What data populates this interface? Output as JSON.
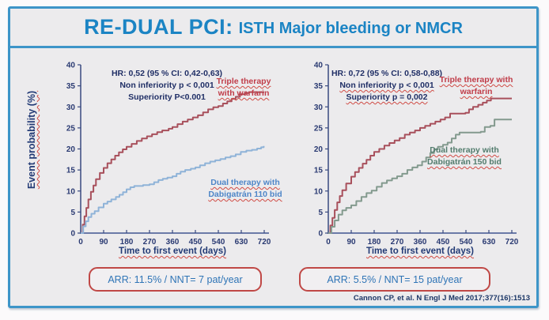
{
  "title": {
    "main": "RE-DUAL PCI:",
    "sub": "ISTH Major bleeding or NMCR"
  },
  "citation": "Cannon CP, et al. N Engl J Med 2017;377(16):1513",
  "arr_boxes": [
    {
      "text": "ARR: 11.5% / NNT= 7 pat/year"
    },
    {
      "text": "ARR: 5.5% / NNT= 15 pat/year"
    }
  ],
  "colors": {
    "frame_blue": "#3d95c8",
    "title_blue": "#1b84c4",
    "navy_text": "#202f66",
    "warfarin_red": "#a8505c",
    "dabigatran110_blue": "#8fb3d8",
    "dabigatran150_green": "#839a8e",
    "arr_border_red": "#c04846",
    "arr_text_blue": "#2e74b6"
  },
  "chart_data": [
    {
      "type": "line",
      "title": "RE-DUAL PCI ISTH Major bleeding or NMCR — warfarin triple therapy vs dabigatran 110 dual therapy",
      "stats": [
        "HR: 0,52 (95 % CI: 0,42-0,63)",
        "Non inferiority p < 0,001",
        "Superiority P<0.001"
      ],
      "xlabel": "Time to first event (days)",
      "ylabel": "Event probability (%)",
      "xlim": [
        0,
        720
      ],
      "ylim": [
        0,
        40
      ],
      "xticks": [
        0,
        90,
        180,
        270,
        360,
        450,
        540,
        630,
        720
      ],
      "yticks": [
        0,
        5,
        10,
        15,
        20,
        25,
        30,
        35,
        40
      ],
      "grid": false,
      "series": [
        {
          "name": "Triple therapy with warfarin",
          "color": "#a8505c",
          "points": [
            [
              0,
              0
            ],
            [
              8,
              2
            ],
            [
              15,
              4
            ],
            [
              22,
              6
            ],
            [
              30,
              8
            ],
            [
              40,
              9.8
            ],
            [
              50,
              11.3
            ],
            [
              60,
              12.8
            ],
            [
              75,
              14.3
            ],
            [
              90,
              15.5
            ],
            [
              105,
              16.6
            ],
            [
              120,
              17.5
            ],
            [
              135,
              18.4
            ],
            [
              150,
              19.2
            ],
            [
              165,
              19.9
            ],
            [
              180,
              20.5
            ],
            [
              200,
              21.2
            ],
            [
              220,
              21.9
            ],
            [
              240,
              22.5
            ],
            [
              260,
              23
            ],
            [
              280,
              23.5
            ],
            [
              300,
              24
            ],
            [
              320,
              24.4
            ],
            [
              345,
              24.8
            ],
            [
              360,
              25.2
            ],
            [
              380,
              25.9
            ],
            [
              400,
              26.5
            ],
            [
              420,
              27
            ],
            [
              440,
              27.5
            ],
            [
              460,
              28
            ],
            [
              480,
              28.7
            ],
            [
              500,
              29.4
            ],
            [
              520,
              29.9
            ],
            [
              540,
              30.2
            ],
            [
              558,
              30.8
            ],
            [
              575,
              31.3
            ],
            [
              592,
              31.9
            ],
            [
              608,
              32.4
            ],
            [
              625,
              33
            ],
            [
              645,
              33.3
            ],
            [
              660,
              33.5
            ],
            [
              720,
              33.5
            ]
          ]
        },
        {
          "name": "Dual therapy with Dabigatrán 110 bid",
          "color": "#8fb3d8",
          "points": [
            [
              0,
              0
            ],
            [
              10,
              1.6
            ],
            [
              20,
              2.8
            ],
            [
              30,
              3.8
            ],
            [
              42,
              4.6
            ],
            [
              55,
              5.2
            ],
            [
              70,
              6.1
            ],
            [
              90,
              7
            ],
            [
              105,
              7.5
            ],
            [
              120,
              8
            ],
            [
              138,
              8.6
            ],
            [
              152,
              9.1
            ],
            [
              166,
              9.7
            ],
            [
              180,
              10.4
            ],
            [
              195,
              10.9
            ],
            [
              210,
              11.2
            ],
            [
              245,
              11.4
            ],
            [
              270,
              11.6
            ],
            [
              288,
              12.1
            ],
            [
              305,
              12.6
            ],
            [
              322,
              12.9
            ],
            [
              340,
              13.2
            ],
            [
              360,
              13.5
            ],
            [
              376,
              14.1
            ],
            [
              392,
              14.6
            ],
            [
              410,
              15
            ],
            [
              432,
              15.3
            ],
            [
              450,
              15.6
            ],
            [
              468,
              16.1
            ],
            [
              488,
              16.6
            ],
            [
              508,
              17
            ],
            [
              528,
              17.3
            ],
            [
              548,
              17.6
            ],
            [
              568,
              18
            ],
            [
              588,
              18.3
            ],
            [
              608,
              18.7
            ],
            [
              628,
              19.3
            ],
            [
              650,
              19.6
            ],
            [
              672,
              19.8
            ],
            [
              692,
              20.1
            ],
            [
              708,
              20.4
            ],
            [
              718,
              20.7
            ]
          ]
        }
      ]
    },
    {
      "type": "line",
      "title": "RE-DUAL PCI ISTH Major bleeding or NMCR — warfarin triple therapy vs dabigatran 150 dual therapy",
      "stats": [
        "HR: 0,72 (95 % CI: 0,58-0,88)",
        "Non inferiority p < 0,001",
        "Superiority p = 0,002"
      ],
      "xlabel": "Time to first event (days)",
      "ylabel": "",
      "xlim": [
        0,
        720
      ],
      "ylim": [
        0,
        40
      ],
      "xticks": [
        0,
        90,
        180,
        270,
        360,
        450,
        540,
        630,
        720
      ],
      "yticks": [
        0,
        5,
        10,
        15,
        20,
        25,
        30,
        35,
        40
      ],
      "grid": false,
      "series": [
        {
          "name": "Triple therapy with warfarin",
          "color": "#a8505c",
          "points": [
            [
              0,
              0
            ],
            [
              8,
              1.8
            ],
            [
              16,
              3.6
            ],
            [
              25,
              5.5
            ],
            [
              35,
              7.3
            ],
            [
              45,
              8.8
            ],
            [
              55,
              10.2
            ],
            [
              70,
              11.8
            ],
            [
              90,
              13.4
            ],
            [
              105,
              14.5
            ],
            [
              120,
              15.5
            ],
            [
              135,
              16.5
            ],
            [
              150,
              17.4
            ],
            [
              165,
              18.4
            ],
            [
              180,
              19.3
            ],
            [
              200,
              20
            ],
            [
              220,
              20.8
            ],
            [
              240,
              21.4
            ],
            [
              260,
              22
            ],
            [
              280,
              22.6
            ],
            [
              300,
              23.4
            ],
            [
              320,
              23.9
            ],
            [
              340,
              24.4
            ],
            [
              360,
              25
            ],
            [
              380,
              25.5
            ],
            [
              400,
              26
            ],
            [
              420,
              26.5
            ],
            [
              440,
              27
            ],
            [
              458,
              27.5
            ],
            [
              478,
              28.4
            ],
            [
              538,
              28.6
            ],
            [
              552,
              29.4
            ],
            [
              568,
              30
            ],
            [
              588,
              30.5
            ],
            [
              606,
              31
            ],
            [
              622,
              31.5
            ],
            [
              638,
              32
            ],
            [
              720,
              32
            ]
          ]
        },
        {
          "name": "Dual therapy with Dabigatrán 150 bid",
          "color": "#839a8e",
          "points": [
            [
              0,
              0
            ],
            [
              12,
              1.5
            ],
            [
              25,
              3
            ],
            [
              40,
              4.4
            ],
            [
              55,
              5.4
            ],
            [
              70,
              6
            ],
            [
              90,
              6.6
            ],
            [
              110,
              7.6
            ],
            [
              130,
              8.6
            ],
            [
              150,
              9.5
            ],
            [
              170,
              10.1
            ],
            [
              190,
              11
            ],
            [
              210,
              11.9
            ],
            [
              230,
              12.5
            ],
            [
              250,
              13
            ],
            [
              270,
              13.5
            ],
            [
              290,
              14.1
            ],
            [
              310,
              15
            ],
            [
              330,
              15.6
            ],
            [
              350,
              16.1
            ],
            [
              368,
              17
            ],
            [
              384,
              18
            ],
            [
              400,
              19
            ],
            [
              415,
              19.9
            ],
            [
              430,
              20.5
            ],
            [
              450,
              21
            ],
            [
              468,
              21.5
            ],
            [
              484,
              22.5
            ],
            [
              500,
              23.4
            ],
            [
              515,
              23.9
            ],
            [
              598,
              24.1
            ],
            [
              614,
              25.2
            ],
            [
              636,
              25.5
            ],
            [
              652,
              27
            ],
            [
              720,
              27
            ]
          ]
        }
      ]
    }
  ]
}
